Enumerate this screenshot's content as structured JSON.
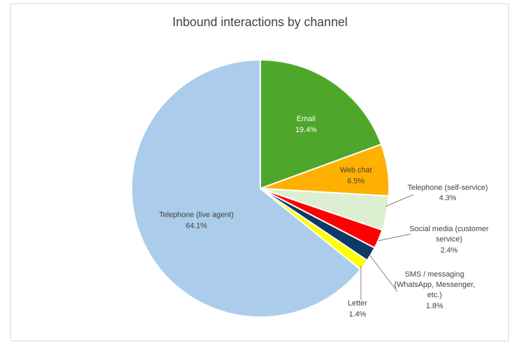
{
  "chart_data": {
    "type": "pie",
    "title": "Inbound interactions by channel",
    "slices": [
      {
        "name": "Email",
        "value": 19.4,
        "label": "19.4%",
        "color": "#4ea72a"
      },
      {
        "name": "Web chat",
        "value": 6.5,
        "label": "6.5%",
        "color": "#ffb000"
      },
      {
        "name": "Telephone (self-service)",
        "value": 4.3,
        "label": "4.3%",
        "color": "#dcefd0"
      },
      {
        "name": "Social media (customer service)",
        "value": 2.4,
        "label": "2.4%",
        "color": "#ff0000"
      },
      {
        "name": "SMS / messaging (WhatsApp, Messenger, etc.)",
        "value": 1.8,
        "label": "1.8%",
        "color": "#0e3a66"
      },
      {
        "name": "Letter",
        "value": 1.4,
        "label": "1.4%",
        "color": "#ffff00"
      },
      {
        "name": "Telephone (live agent)",
        "value": 64.1,
        "label": "64.1%",
        "color": "#abcdeb"
      }
    ],
    "start_angle_deg": 0,
    "direction": "clockwise",
    "legend": "none"
  }
}
